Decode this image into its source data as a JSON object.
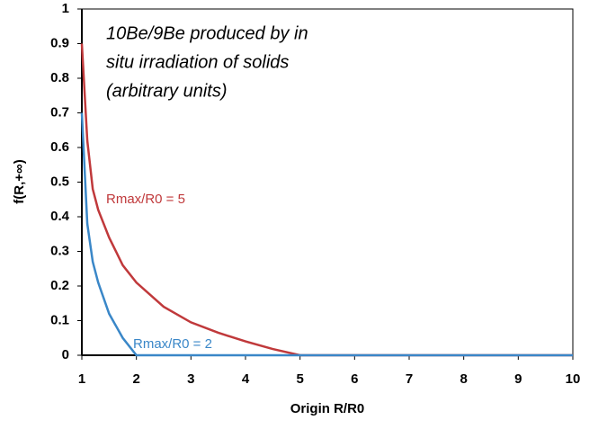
{
  "chart_data": {
    "type": "line",
    "annotation": [
      "10Be/9Be produced by in",
      "situ irradiation of solids",
      "(arbitrary units)"
    ],
    "xlabel": "Origin R/R0",
    "ylabel": "f(R,+∞)",
    "xlim": [
      1,
      10
    ],
    "xticks": [
      1,
      2,
      3,
      4,
      5,
      6,
      7,
      8,
      9,
      10
    ],
    "ylim": [
      0,
      1
    ],
    "yticks": [
      0,
      0.1,
      0.2,
      0.3,
      0.4,
      0.5,
      0.6,
      0.7,
      0.8,
      0.9,
      1
    ],
    "grid": false,
    "series": [
      {
        "name": "Rmax/R0 = 5",
        "color": "#c0393b",
        "x": [
          1,
          1.1,
          1.2,
          1.3,
          1.5,
          1.75,
          2,
          2.5,
          3,
          3.5,
          4,
          4.5,
          5,
          10
        ],
        "values": [
          0.9,
          0.62,
          0.48,
          0.42,
          0.34,
          0.26,
          0.21,
          0.14,
          0.095,
          0.065,
          0.04,
          0.018,
          0,
          0
        ]
      },
      {
        "name": "Rmax/R0 = 2",
        "color": "#3a87c8",
        "x": [
          1,
          1.1,
          1.2,
          1.3,
          1.5,
          1.75,
          2,
          10
        ],
        "values": [
          0.7,
          0.38,
          0.27,
          0.21,
          0.12,
          0.05,
          0,
          0
        ]
      }
    ]
  }
}
